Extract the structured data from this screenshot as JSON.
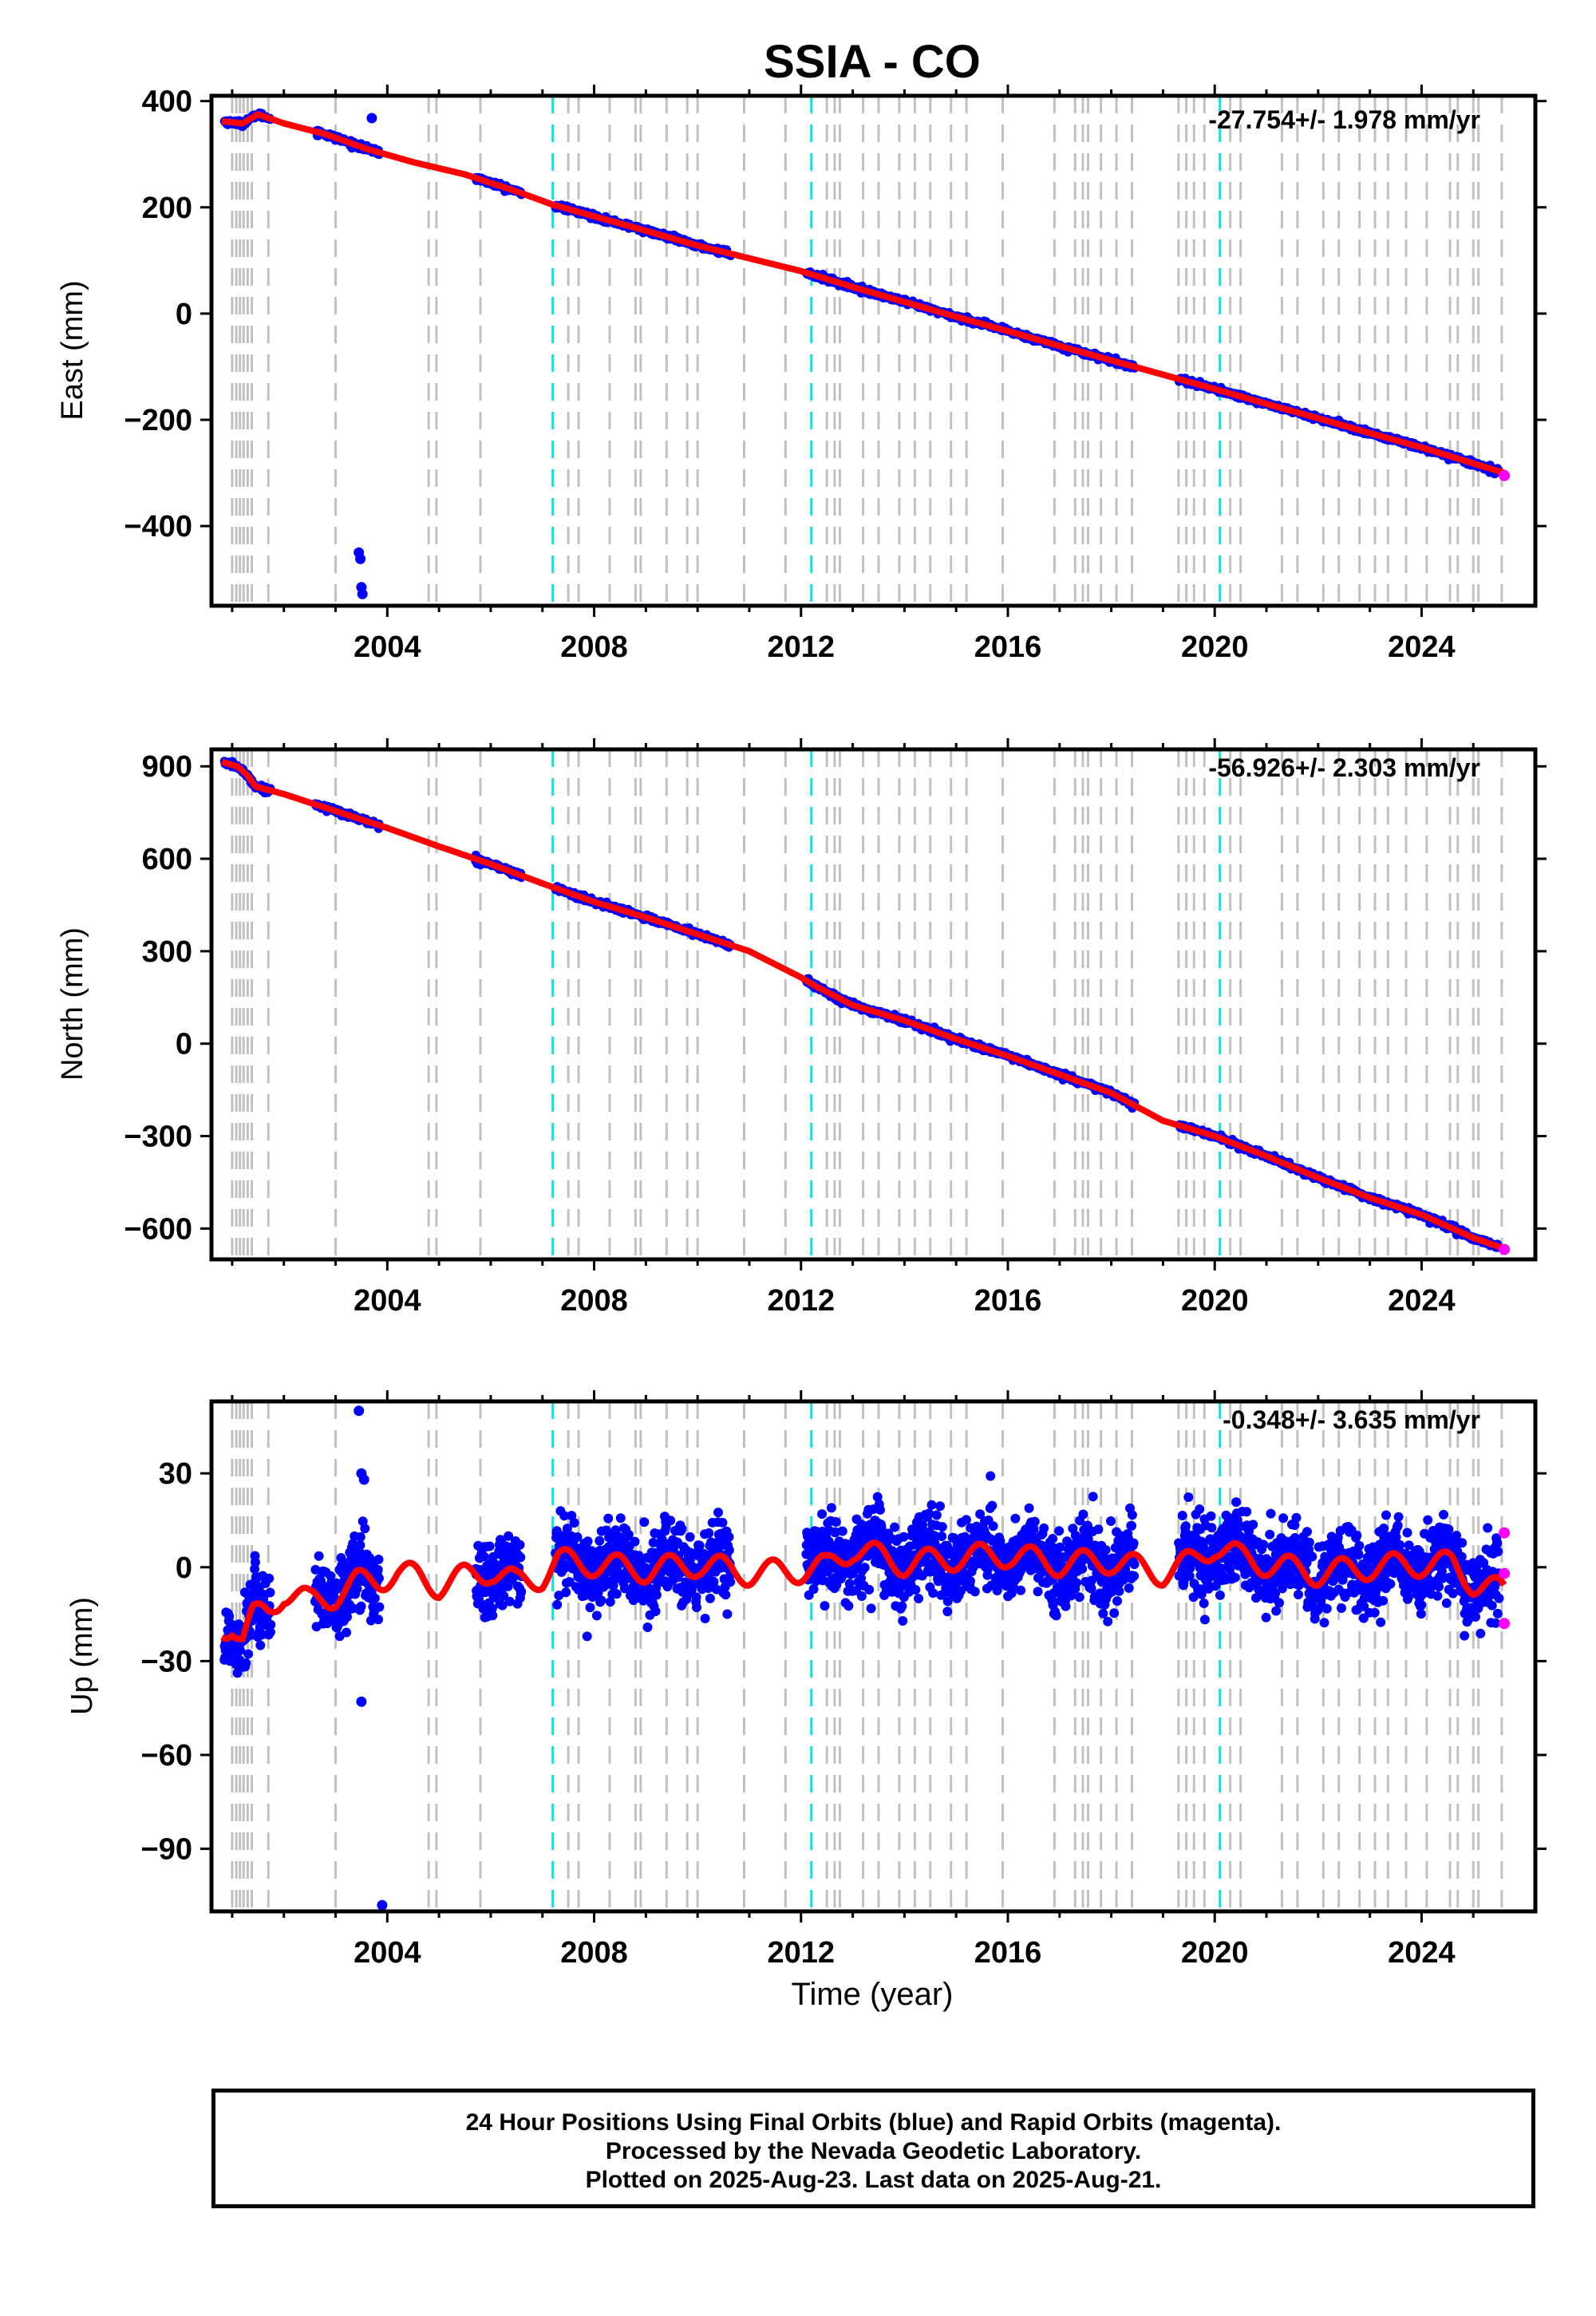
{
  "title": "SSIA - CO",
  "footer": {
    "line1": "24 Hour Positions Using Final Orbits (blue) and Rapid Orbits (magenta).",
    "line2": "Processed by the Nevada Geodetic Laboratory.",
    "line3": "Plotted on 2025-Aug-23. Last data on 2025-Aug-21."
  },
  "colors": {
    "final": "#0000ff",
    "rapid": "#ff00ff",
    "model": "#ff0000",
    "equipment_change": "#c0c0c0",
    "earthquake": "#00e5e5"
  },
  "events": {
    "equipment_changes": [
      2001.0,
      2001.08,
      2001.15,
      2001.22,
      2001.3,
      2001.38,
      2001.7,
      2003.0,
      2004.8,
      2004.95,
      2005.8,
      2007.5,
      2007.7,
      2008.3,
      2008.8,
      2008.9,
      2009.4,
      2009.8,
      2010.0,
      2010.9,
      2011.7,
      2012.5,
      2012.65,
      2012.75,
      2013.2,
      2013.5,
      2013.9,
      2014.2,
      2014.5,
      2014.9,
      2015.2,
      2015.9,
      2016.9,
      2017.3,
      2017.45,
      2017.55,
      2017.8,
      2018.1,
      2018.4,
      2019.3,
      2019.45,
      2019.6,
      2019.8,
      2020.3,
      2020.5,
      2021.3,
      2021.6,
      2022.1,
      2022.4,
      2022.8,
      2023.1,
      2023.35,
      2023.7,
      2024.1,
      2024.55,
      2024.7,
      2025.0,
      2025.1,
      2025.55
    ],
    "earthquakes": [
      2007.2,
      2012.2,
      2020.1
    ]
  },
  "chart_data": [
    {
      "type": "scatter",
      "ylabel": "East (mm)",
      "rate_label": "-27.754+/- 1.978 mm/yr",
      "xlim": [
        2000.6,
        2026.2
      ],
      "ylim": [
        -550,
        410
      ],
      "yticks": [
        400,
        200,
        0,
        -200,
        -400
      ],
      "ytick_labels": [
        "400",
        "200",
        "0",
        "−200",
        "−400"
      ],
      "xticks": [
        2004,
        2008,
        2012,
        2016,
        2020,
        2024
      ],
      "xtick_labels": [
        "2004",
        "2008",
        "2012",
        "2016",
        "2020",
        "2024"
      ],
      "series": [
        {
          "x": [
            2000.8,
            2001.2,
            2001.5,
            2002.0,
            2002.8,
            2003.6,
            2004.5,
            2005.5,
            2006.5,
            2007.2,
            2008.0,
            2009.0,
            2010.0,
            2011.0,
            2012.0,
            2013.0,
            2014.0,
            2015.0,
            2016.0,
            2017.0,
            2018.0,
            2019.0,
            2020.0,
            2021.0,
            2022.0,
            2023.0,
            2024.0,
            2025.6
          ],
          "values": [
            362,
            358,
            375,
            358,
            338,
            310,
            285,
            262,
            230,
            205,
            183,
            156,
            128,
            104,
            80,
            50,
            22,
            -6,
            -33,
            -61,
            -88,
            -115,
            -142,
            -170,
            -197,
            -225,
            -252,
            -300
          ]
        },
        {
          "x": [
            2003.45,
            2003.48,
            2003.5,
            2003.52
          ],
          "values": [
            -450,
            -462,
            -515,
            -528
          ]
        },
        {
          "x": [
            2003.7
          ],
          "values": [
            368
          ]
        },
        {
          "x": [
            2025.6
          ],
          "values": [
            -305
          ]
        }
      ]
    },
    {
      "type": "scatter",
      "ylabel": "North (mm)",
      "rate_label": "-56.926+/- 2.303 mm/yr",
      "xlim": [
        2000.6,
        2026.2
      ],
      "ylim": [
        -700,
        955
      ],
      "yticks": [
        900,
        600,
        300,
        0,
        -300,
        -600
      ],
      "ytick_labels": [
        "900",
        "600",
        "300",
        "0",
        "−300",
        "−600"
      ],
      "xticks": [
        2004,
        2008,
        2012,
        2016,
        2020,
        2024
      ],
      "xtick_labels": [
        "2004",
        "2008",
        "2012",
        "2016",
        "2020",
        "2024"
      ],
      "series": [
        {
          "x": [
            2000.8,
            2001.1,
            2001.3,
            2001.45,
            2002.0,
            2003.0,
            2004.0,
            2005.0,
            2006.0,
            2007.0,
            2008.0,
            2009.0,
            2010.0,
            2011.0,
            2012.0,
            2012.3,
            2013.0,
            2014.0,
            2015.0,
            2016.0,
            2017.0,
            2018.0,
            2019.0,
            2020.0,
            2021.0,
            2022.0,
            2023.0,
            2024.0,
            2025.0,
            2025.6
          ],
          "values": [
            915,
            900,
            870,
            835,
            810,
            755,
            700,
            640,
            583,
            520,
            460,
            410,
            355,
            300,
            215,
            185,
            125,
            75,
            15,
            -40,
            -100,
            -160,
            -250,
            -300,
            -365,
            -435,
            -500,
            -555,
            -630,
            -665
          ]
        },
        {
          "x": [
            2025.6
          ],
          "values": [
            -668
          ]
        }
      ]
    },
    {
      "type": "scatter",
      "ylabel": "Up (mm)",
      "xlabel": "Time (year)",
      "rate_label": "-0.348+/- 3.635 mm/yr",
      "xlim": [
        2000.6,
        2026.2
      ],
      "ylim": [
        -110,
        53
      ],
      "yticks": [
        30,
        0,
        -30,
        -60,
        -90
      ],
      "ytick_labels": [
        "30",
        "0",
        "−30",
        "−60",
        "−90"
      ],
      "xticks": [
        2004,
        2008,
        2012,
        2016,
        2020,
        2024
      ],
      "xtick_labels": [
        "2004",
        "2008",
        "2012",
        "2016",
        "2020",
        "2024"
      ],
      "series": [
        {
          "x": [
            2000.8,
            2001.0,
            2001.2,
            2001.4,
            2001.7,
            2002.0,
            2002.5,
            2003.0,
            2003.4,
            2003.8,
            2004.2,
            2004.6,
            2005.0,
            2005.5,
            2006.0,
            2006.5,
            2007.0,
            2007.3,
            2008.0,
            2009.0,
            2010.0,
            2011.0,
            2012.0,
            2012.5,
            2013.0,
            2014.0,
            2015.0,
            2016.0,
            2017.0,
            2018.0,
            2019.0,
            2019.6,
            2020.0,
            2020.5,
            2021.0,
            2022.0,
            2023.0,
            2024.0,
            2024.6,
            2025.0,
            2025.6
          ],
          "values": [
            -20,
            -18,
            -23,
            -16,
            -14,
            -8,
            -11,
            -9,
            -5,
            -4,
            -2,
            -3,
            -6,
            -3,
            -1,
            -5,
            -3,
            2,
            1,
            -1,
            1,
            -2,
            -1,
            0,
            6,
            1,
            3,
            4,
            1,
            2,
            -2,
            2,
            7,
            3,
            1,
            -2,
            0,
            1,
            1,
            -5,
            -8
          ]
        },
        {
          "x": [
            2003.45,
            2003.5,
            2003.55,
            2003.5,
            2003.9
          ],
          "values": [
            50,
            30,
            28,
            -43,
            -108
          ]
        },
        {
          "x": [
            2025.6,
            2025.6,
            2025.6
          ],
          "values": [
            11,
            -2,
            -18
          ]
        }
      ]
    }
  ]
}
